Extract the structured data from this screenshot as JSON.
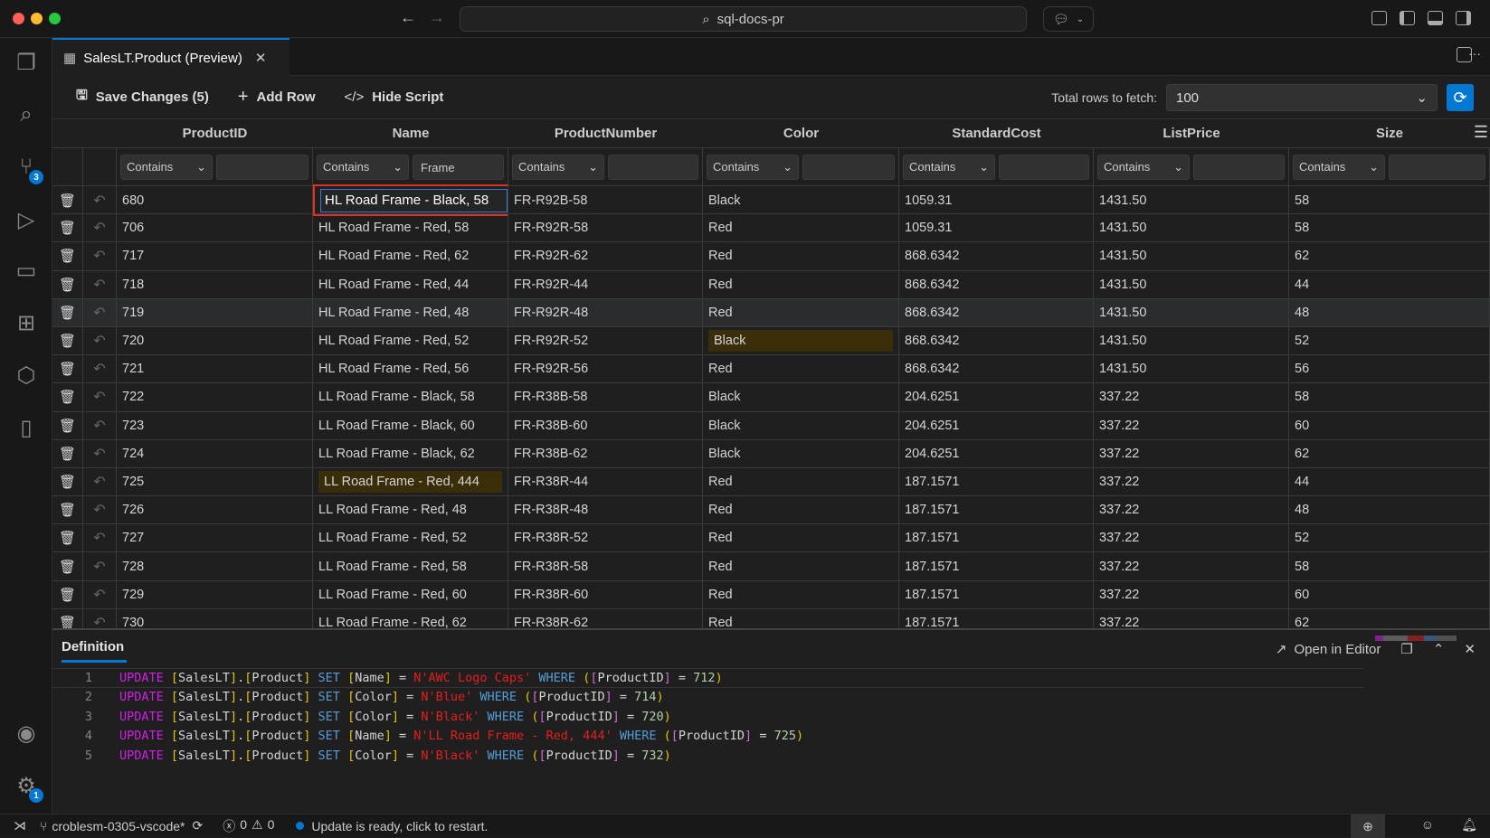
{
  "window": {
    "search": "sql-docs-pr"
  },
  "activity": {
    "scm_badge": "3",
    "settings_badge": "1"
  },
  "tab": {
    "label": "SalesLT.Product (Preview)"
  },
  "toolbar": {
    "save": "Save Changes (5)",
    "add_row": "Add Row",
    "hide_script": "Hide Script",
    "fetch_label": "Total rows to fetch:",
    "fetch_value": "100"
  },
  "grid": {
    "columns": [
      "ProductID",
      "Name",
      "ProductNumber",
      "Color",
      "StandardCost",
      "ListPrice",
      "Size"
    ],
    "filters": [
      {
        "op": "Contains",
        "value": ""
      },
      {
        "op": "Contains",
        "value": "Frame"
      },
      {
        "op": "Contains",
        "value": ""
      },
      {
        "op": "Contains",
        "value": ""
      },
      {
        "op": "Contains",
        "value": ""
      },
      {
        "op": "Contains",
        "value": ""
      },
      {
        "op": "Contains",
        "value": ""
      }
    ],
    "rows": [
      [
        "680",
        "HL Road Frame - Black, 58",
        "FR-R92B-58",
        "Black",
        "1059.31",
        "1431.50",
        "58"
      ],
      [
        "706",
        "HL Road Frame - Red, 58",
        "FR-R92R-58",
        "Red",
        "1059.31",
        "1431.50",
        "58"
      ],
      [
        "717",
        "HL Road Frame - Red, 62",
        "FR-R92R-62",
        "Red",
        "868.6342",
        "1431.50",
        "62"
      ],
      [
        "718",
        "HL Road Frame - Red, 44",
        "FR-R92R-44",
        "Red",
        "868.6342",
        "1431.50",
        "44"
      ],
      [
        "719",
        "HL Road Frame - Red, 48",
        "FR-R92R-48",
        "Red",
        "868.6342",
        "1431.50",
        "48"
      ],
      [
        "720",
        "HL Road Frame - Red, 52",
        "FR-R92R-52",
        "Black",
        "868.6342",
        "1431.50",
        "52"
      ],
      [
        "721",
        "HL Road Frame - Red, 56",
        "FR-R92R-56",
        "Red",
        "868.6342",
        "1431.50",
        "56"
      ],
      [
        "722",
        "LL Road Frame - Black, 58",
        "FR-R38B-58",
        "Black",
        "204.6251",
        "337.22",
        "58"
      ],
      [
        "723",
        "LL Road Frame - Black, 60",
        "FR-R38B-60",
        "Black",
        "204.6251",
        "337.22",
        "60"
      ],
      [
        "724",
        "LL Road Frame - Black, 62",
        "FR-R38B-62",
        "Black",
        "204.6251",
        "337.22",
        "62"
      ],
      [
        "725",
        "LL Road Frame - Red, 444",
        "FR-R38R-44",
        "Red",
        "187.1571",
        "337.22",
        "44"
      ],
      [
        "726",
        "LL Road Frame - Red, 48",
        "FR-R38R-48",
        "Red",
        "187.1571",
        "337.22",
        "48"
      ],
      [
        "727",
        "LL Road Frame - Red, 52",
        "FR-R38R-52",
        "Red",
        "187.1571",
        "337.22",
        "52"
      ],
      [
        "728",
        "LL Road Frame - Red, 58",
        "FR-R38R-58",
        "Red",
        "187.1571",
        "337.22",
        "58"
      ],
      [
        "729",
        "LL Road Frame - Red, 60",
        "FR-R38R-60",
        "Red",
        "187.1571",
        "337.22",
        "60"
      ],
      [
        "730",
        "LL Road Frame - Red, 62",
        "FR-R38R-62",
        "Red",
        "187.1571",
        "337.22",
        "62"
      ]
    ],
    "editing_cell": {
      "row": 0,
      "col": 1
    },
    "modified_cells": [
      {
        "row": 5,
        "col": 3
      },
      {
        "row": 10,
        "col": 1
      }
    ],
    "selected_row": 4
  },
  "panel": {
    "tab": "Definition",
    "open_in_editor": "Open in Editor",
    "lines": [
      {
        "n": "1",
        "col": "Name",
        "val": "N'AWC Logo Caps'",
        "id": "712"
      },
      {
        "n": "2",
        "col": "Color",
        "val": "N'Blue'",
        "id": "714"
      },
      {
        "n": "3",
        "col": "Color",
        "val": "N'Black'",
        "id": "720"
      },
      {
        "n": "4",
        "col": "Name",
        "val": "N'LL Road Frame - Red, 444'",
        "id": "725"
      },
      {
        "n": "5",
        "col": "Color",
        "val": "N'Black'",
        "id": "732"
      }
    ]
  },
  "status": {
    "branch": "croblesm-0305-vscode*",
    "errors": "0",
    "warnings": "0",
    "update": "Update is ready, click to restart."
  },
  "colors": {
    "accent": "#0078d4",
    "edit_border": "#e0301e",
    "modified_bg": "#3a2d0a"
  }
}
